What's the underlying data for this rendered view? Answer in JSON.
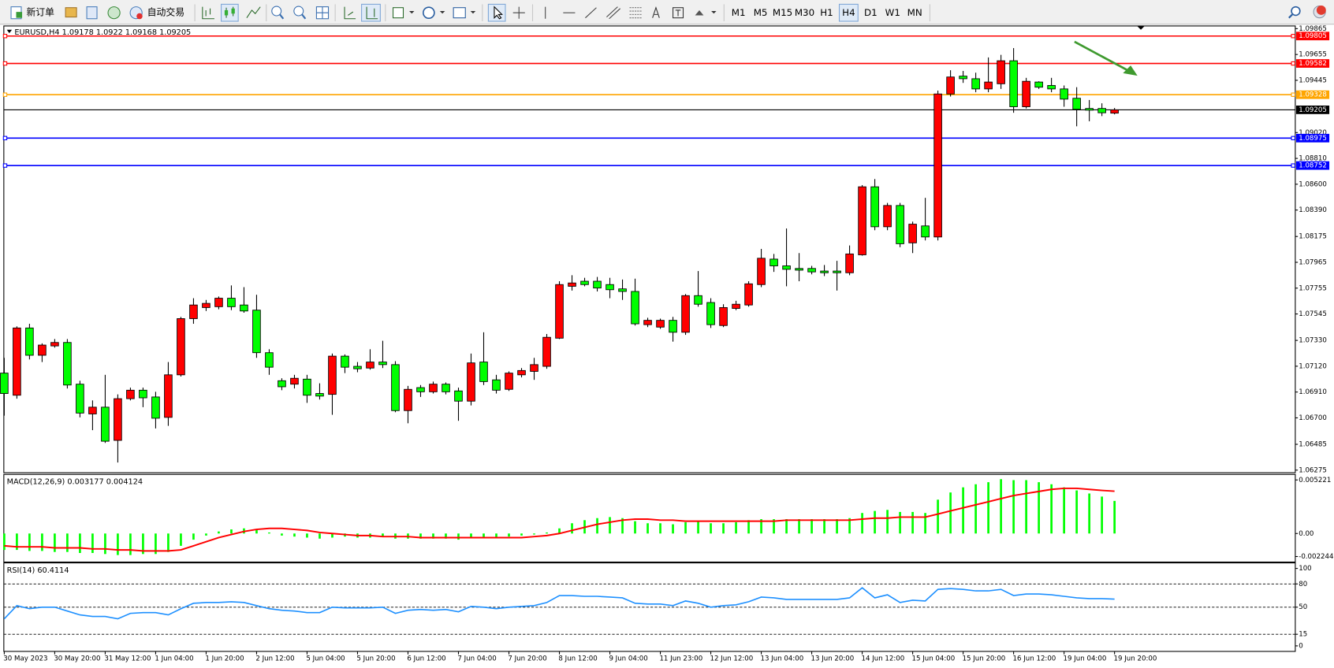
{
  "toolbar": {
    "new_order": "新订单",
    "auto_trading": "自动交易",
    "timeframes": [
      "M1",
      "M5",
      "M15",
      "M30",
      "H1",
      "H4",
      "D1",
      "W1",
      "MN"
    ],
    "active_timeframe": 5
  },
  "chart_data": [
    {
      "type": "candlestick",
      "symbol": "EURUSD,H4",
      "categories": [
        "30 May 2023",
        null,
        null,
        null,
        "30 May 20:00",
        null,
        null,
        null,
        "31 May 12:00",
        null,
        null,
        null,
        "1 Jun 04:00",
        null,
        null,
        null,
        "1 Jun 20:00",
        null,
        null,
        null,
        "2 Jun 12:00",
        null,
        null,
        null,
        "5 Jun 04:00",
        null,
        null,
        null,
        "5 Jun 20:00",
        null,
        null,
        null,
        "6 Jun 12:00",
        null,
        null,
        null,
        "7 Jun 04:00",
        null,
        null,
        null,
        "7 Jun 20:00",
        null,
        null,
        null,
        "8 Jun 12:00",
        null,
        null,
        null,
        "9 Jun 04:00",
        null,
        null,
        null,
        "11 Jun 23:00",
        null,
        null,
        null,
        "12 Jun 12:00",
        null,
        null,
        null,
        "13 Jun 04:00",
        null,
        null,
        null,
        "13 Jun 20:00",
        null,
        null,
        null,
        "14 Jun 12:00",
        null,
        null,
        null,
        "15 Jun 04:00",
        null,
        null,
        null,
        "15 Jun 20:00",
        null,
        null,
        null,
        "16 Jun 12:00",
        null,
        null,
        null,
        "19 Jun 04:00",
        null,
        null,
        null,
        "19 Jun 20:00"
      ],
      "open": [
        1.07064,
        1.06884,
        1.07431,
        1.07209,
        1.07285,
        1.07313,
        1.06974,
        1.06732,
        1.06787,
        1.06517,
        1.06856,
        1.06925,
        1.0687,
        1.06704,
        1.0705,
        1.07507,
        1.07597,
        1.07604,
        1.07673,
        1.07618,
        1.07576,
        1.0723,
        1.07002,
        1.06974,
        1.07015,
        1.06898,
        1.06891,
        1.07202,
        1.07119,
        1.07105,
        1.07154,
        1.07133,
        1.06759,
        1.06946,
        1.06912,
        1.06974,
        1.06919,
        1.06836,
        1.07154,
        1.07009,
        1.06932,
        1.0705,
        1.07078,
        1.07119,
        1.07348,
        1.0777,
        1.07811,
        1.07811,
        1.07784,
        1.07749,
        1.07728,
        1.07458,
        1.07438,
        1.07493,
        1.07396,
        1.07694,
        1.07638,
        1.07451,
        1.0759,
        1.07618,
        1.07784,
        1.07991,
        1.07936,
        1.07915,
        1.07915,
        1.07894,
        1.07894,
        1.0788,
        1.08026,
        1.08579,
        1.08254,
        1.08427,
        1.08123,
        1.08261,
        1.08171,
        1.09334,
        1.09479,
        1.09458,
        1.09375,
        1.09417,
        1.09604,
        1.0923,
        1.09431,
        1.09403,
        1.09375,
        1.09299,
        1.09216,
        1.09216,
        1.09178
      ],
      "high": [
        1.07188,
        1.07444,
        1.07465,
        1.07306,
        1.07341,
        1.07341,
        1.07002,
        1.06842,
        1.0705,
        1.06891,
        1.06946,
        1.06946,
        1.06912,
        1.07154,
        1.07521,
        1.07673,
        1.07659,
        1.07687,
        1.07777,
        1.07763,
        1.07701,
        1.07258,
        1.07022,
        1.0705,
        1.0705,
        1.06981,
        1.07223,
        1.07216,
        1.07154,
        1.07258,
        1.07327,
        1.07161,
        1.0696,
        1.06967,
        1.06995,
        1.06988,
        1.06946,
        1.07223,
        1.07396,
        1.0705,
        1.07078,
        1.07105,
        1.07188,
        1.07382,
        1.07811,
        1.0786,
        1.07839,
        1.07846,
        1.07839,
        1.07825,
        1.07832,
        1.07514,
        1.07507,
        1.07521,
        1.07707,
        1.07894,
        1.07673,
        1.07624,
        1.07652,
        1.07811,
        1.08074,
        1.08033,
        1.0824,
        1.0804,
        1.07936,
        1.07943,
        1.07977,
        1.08102,
        1.08593,
        1.08642,
        1.08448,
        1.08448,
        1.08296,
        1.08489,
        1.09361,
        1.09527,
        1.09521,
        1.09507,
        1.09631,
        1.09652,
        1.09707,
        1.09465,
        1.09437,
        1.09465,
        1.09403,
        1.09389,
        1.09285,
        1.09258,
        1.0922
      ],
      "low": [
        1.06718,
        1.06856,
        1.07175,
        1.07154,
        1.07271,
        1.06939,
        1.06704,
        1.066,
        1.06496,
        1.06337,
        1.06842,
        1.06787,
        1.06614,
        1.06635,
        1.07036,
        1.07465,
        1.07569,
        1.07583,
        1.07576,
        1.07555,
        1.07188,
        1.0705,
        1.06925,
        1.06939,
        1.06822,
        1.06849,
        1.06725,
        1.07064,
        1.07071,
        1.07092,
        1.07105,
        1.06746,
        1.06656,
        1.0687,
        1.06898,
        1.06891,
        1.06676,
        1.06801,
        1.06967,
        1.06898,
        1.06919,
        1.07029,
        1.07009,
        1.07099,
        1.07341,
        1.07735,
        1.0777,
        1.07728,
        1.07673,
        1.07659,
        1.07451,
        1.07438,
        1.07424,
        1.0732,
        1.07375,
        1.07604,
        1.07431,
        1.07438,
        1.07576,
        1.07604,
        1.07763,
        1.07887,
        1.0777,
        1.07811,
        1.07867,
        1.07853,
        1.07735,
        1.0786,
        1.08019,
        1.08226,
        1.08226,
        1.08088,
        1.0804,
        1.08143,
        1.08143,
        1.09313,
        1.09424,
        1.09348,
        1.09348,
        1.09375,
        1.09181,
        1.09216,
        1.09375,
        1.09348,
        1.0923,
        1.09071,
        1.09112,
        1.09154,
        1.09168
      ],
      "close": [
        1.06898,
        1.07431,
        1.07209,
        1.07292,
        1.07313,
        1.06967,
        1.06739,
        1.06787,
        1.0651,
        1.06856,
        1.06925,
        1.06863,
        1.06697,
        1.0705,
        1.07507,
        1.07618,
        1.07631,
        1.07673,
        1.07604,
        1.07569,
        1.0723,
        1.07112,
        1.06953,
        1.07022,
        1.06884,
        1.06877,
        1.07202,
        1.07112,
        1.07099,
        1.07154,
        1.07133,
        1.06759,
        1.06932,
        1.06912,
        1.06974,
        1.06912,
        1.06836,
        1.07147,
        1.06995,
        1.06925,
        1.07064,
        1.07085,
        1.07133,
        1.07355,
        1.07784,
        1.07797,
        1.07784,
        1.07756,
        1.07742,
        1.07728,
        1.07465,
        1.07493,
        1.07493,
        1.07396,
        1.07694,
        1.07624,
        1.07458,
        1.07597,
        1.07624,
        1.0779,
        1.07998,
        1.07936,
        1.07908,
        1.07901,
        1.07887,
        1.0788,
        1.0788,
        1.08033,
        1.08579,
        1.08254,
        1.08427,
        1.08116,
        1.08275,
        1.08171,
        1.09334,
        1.09472,
        1.09458,
        1.09375,
        1.09431,
        1.09604,
        1.0923,
        1.09437,
        1.09389,
        1.09375,
        1.09292,
        1.09209,
        1.09202,
        1.09181,
        1.09205
      ],
      "up_color": "#ff0000",
      "down_color": "#00ff00",
      "ylim": [
        1.06254,
        1.09887
      ],
      "yticks": [
        1.09865,
        1.09655,
        1.09445,
        {
          "value": 1.0902,
          "label": "1.09020"
        },
        {
          "value": 1.0881,
          "label": "1.08810"
        },
        {
          "value": 1.086,
          "label": "1.08600"
        },
        {
          "value": 1.0839,
          "label": "1.08390"
        },
        1.08175,
        1.07965,
        1.07755,
        1.07545,
        {
          "value": 1.0733,
          "label": "1.07330"
        },
        {
          "value": 1.0712,
          "label": "1.07120"
        },
        {
          "value": 1.0691,
          "label": "1.06910"
        },
        {
          "value": 1.067,
          "label": "1.06700"
        },
        1.06485,
        1.06275
      ],
      "levels": [
        {
          "value": 1.09805,
          "color": "#ff0000"
        },
        {
          "value": 1.09582,
          "color": "#ff0000"
        },
        {
          "value": 1.09328,
          "color": "#ffa500"
        },
        {
          "value": 1.08975,
          "color": "#0000ff"
        },
        {
          "value": 1.08752,
          "color": "#0000ff"
        }
      ]
    },
    {
      "type": "macd",
      "title": "MACD(12,26,9)",
      "values": [
        -0.0016,
        -0.0016,
        -0.0017,
        -0.0017,
        -0.0018,
        -0.0018,
        -0.0019,
        -0.0019,
        -0.002,
        -0.0021,
        -0.0021,
        -0.002,
        -0.002,
        -0.0018,
        -0.0012,
        -0.0006,
        -0.0002,
        0.0002,
        0.0004,
        0.0005,
        0.0004,
        0.0001,
        -0.0002,
        -0.0003,
        -0.0004,
        -0.0005,
        -0.0004,
        -0.0003,
        -0.0004,
        -0.0004,
        -0.0003,
        -0.0005,
        -0.0005,
        -0.0005,
        -0.0005,
        -0.0005,
        -0.0006,
        -0.0004,
        -0.0004,
        -0.0004,
        -0.0003,
        -0.0002,
        -0.0001,
        0.0001,
        0.0005,
        0.001,
        0.0013,
        0.0015,
        0.0016,
        0.0015,
        0.0012,
        0.001,
        0.001,
        0.0009,
        0.0011,
        0.0012,
        0.001,
        0.001,
        0.0011,
        0.0013,
        0.0014,
        0.0014,
        0.0014,
        0.0014,
        0.0014,
        0.0014,
        0.0014,
        0.0015,
        0.002,
        0.0022,
        0.0023,
        0.0021,
        0.0021,
        0.002,
        0.0033,
        0.004,
        0.0045,
        0.0048,
        0.005,
        0.0053,
        0.0052,
        0.0052,
        0.005,
        0.0048,
        0.0045,
        0.0042,
        0.0039,
        0.0036,
        0.003177
      ],
      "signal": [
        -0.0012,
        -0.0013,
        -0.0013,
        -0.0013,
        -0.0014,
        -0.0014,
        -0.0014,
        -0.0015,
        -0.0015,
        -0.0016,
        -0.0016,
        -0.0017,
        -0.0017,
        -0.0017,
        -0.0016,
        -0.0012,
        -0.0008,
        -0.0004,
        -0.0001,
        0.0002,
        0.0004,
        0.0005,
        0.0005,
        0.0004,
        0.0003,
        0.0001,
        0,
        -0.0001,
        -0.0002,
        -0.0002,
        -0.0003,
        -0.0003,
        -0.0003,
        -0.0004,
        -0.0004,
        -0.0004,
        -0.0004,
        -0.0004,
        -0.0004,
        -0.0004,
        -0.0004,
        -0.0004,
        -0.0003,
        -0.0002,
        0,
        0.0003,
        0.0006,
        0.0009,
        0.0011,
        0.0013,
        0.0014,
        0.0014,
        0.0013,
        0.0013,
        0.0012,
        0.0012,
        0.0012,
        0.0012,
        0.0012,
        0.0012,
        0.0012,
        0.0012,
        0.0013,
        0.0013,
        0.0013,
        0.0013,
        0.0013,
        0.0013,
        0.0014,
        0.0015,
        0.0015,
        0.0016,
        0.0016,
        0.0016,
        0.0019,
        0.0022,
        0.0025,
        0.0028,
        0.0031,
        0.0034,
        0.0037,
        0.0039,
        0.0041,
        0.0043,
        0.0044,
        0.0044,
        0.0043,
        0.0042,
        0.004124
      ],
      "color": "#00ff00",
      "signal_color": "#ff0000",
      "ylim": [
        -0.002244,
        0.005221
      ],
      "yticks": [
        0.005221,
        {
          "value": 0,
          "label": "0.00"
        },
        -0.002244
      ]
    },
    {
      "type": "rsi",
      "title": "RSI(14)",
      "values": [
        35,
        52,
        48,
        50,
        50,
        45,
        40,
        38,
        38,
        35,
        42,
        43,
        43,
        40,
        48,
        55,
        56,
        56,
        57,
        56,
        52,
        48,
        46,
        45,
        43,
        43,
        50,
        49,
        49,
        49,
        50,
        42,
        46,
        47,
        46,
        47,
        44,
        51,
        50,
        48,
        50,
        51,
        52,
        56,
        65,
        65,
        64,
        64,
        63,
        62,
        55,
        54,
        54,
        52,
        58,
        55,
        50,
        52,
        53,
        57,
        63,
        62,
        60,
        60,
        60,
        60,
        60,
        62,
        75,
        62,
        66,
        56,
        59,
        58,
        73,
        74,
        73,
        71,
        71,
        73,
        65,
        67,
        67,
        66,
        64,
        62,
        61,
        61,
        60.4114
      ],
      "color": "#1e90ff",
      "ylim": [
        0,
        100
      ],
      "yticks": [
        100,
        80,
        50,
        15,
        0
      ],
      "levels": [
        80,
        50,
        15
      ]
    }
  ]
}
